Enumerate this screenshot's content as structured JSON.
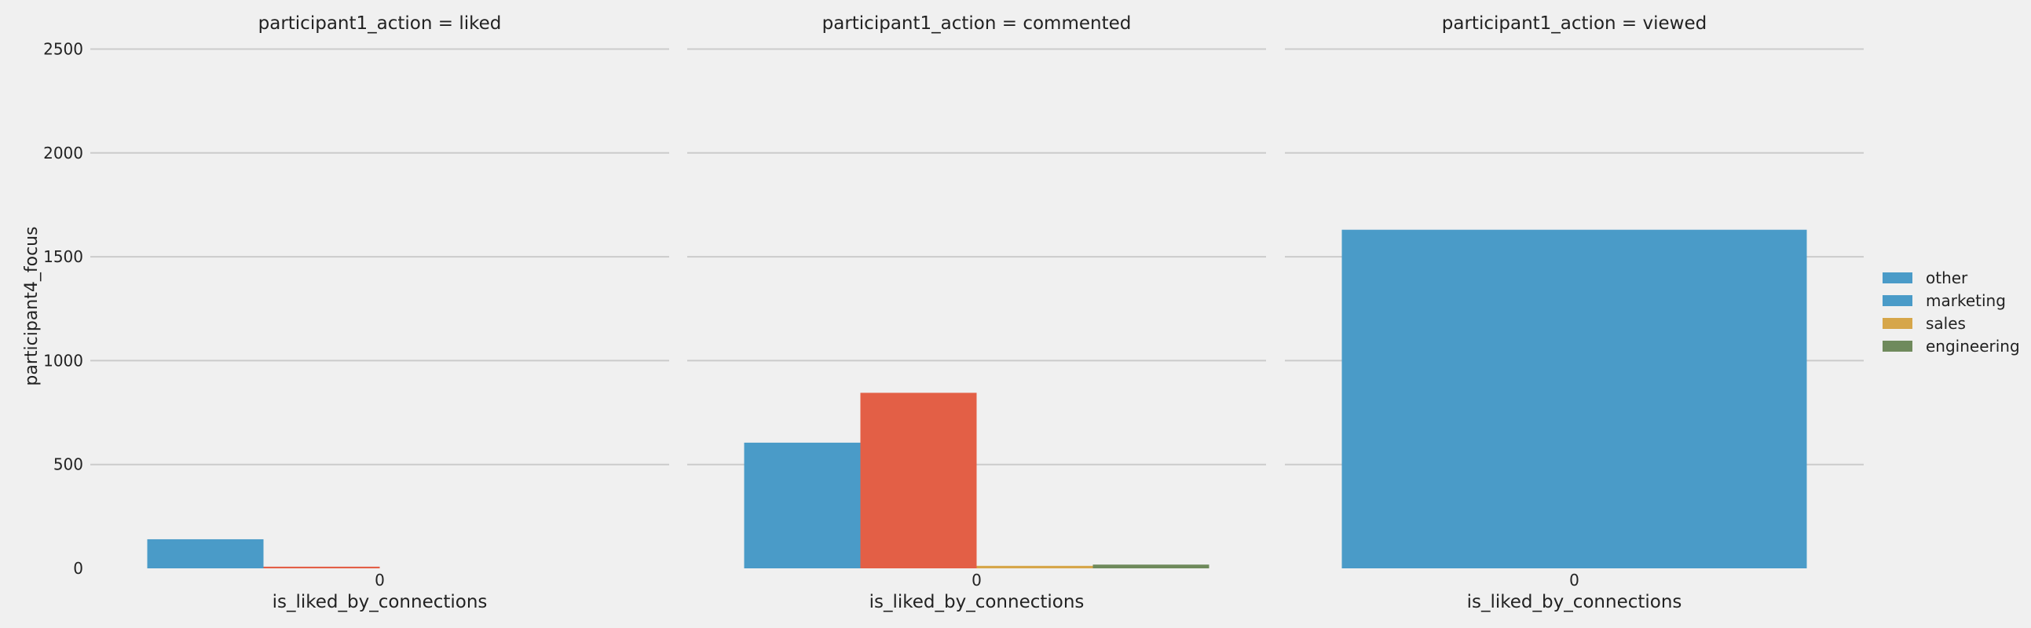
{
  "chart_data": {
    "type": "bar",
    "ylabel": "participant4_focus",
    "ylim": [
      0,
      2600
    ],
    "yticks": [
      0,
      500,
      1000,
      1500,
      2000,
      2500
    ],
    "grid": true,
    "legend_position": "right",
    "legend": [
      {
        "label": "other",
        "color": "#4a9bc8"
      },
      {
        "label": "marketing",
        "color": "#4a9bc8"
      },
      {
        "label": "sales",
        "color": "#d6a64a"
      },
      {
        "label": "engineering",
        "color": "#6f8a5c"
      }
    ],
    "panels": [
      {
        "title": "participant1_action = liked",
        "xlabel": "is_liked_by_connections",
        "categories": [
          "0"
        ],
        "bars": [
          {
            "value": 140,
            "color": "#4a9bc8"
          },
          {
            "value": 8,
            "color": "#e35f46"
          }
        ]
      },
      {
        "title": "participant1_action = commented",
        "xlabel": "is_liked_by_connections",
        "categories": [
          "0"
        ],
        "bars": [
          {
            "value": 605,
            "color": "#4a9bc8"
          },
          {
            "value": 845,
            "color": "#e35f46"
          },
          {
            "value": 12,
            "color": "#d6a64a"
          },
          {
            "value": 18,
            "color": "#6f8a5c"
          }
        ]
      },
      {
        "title": "participant1_action = viewed",
        "xlabel": "is_liked_by_connections",
        "categories": [
          "0"
        ],
        "bars": [
          {
            "value": 1630,
            "color": "#4a9bc8"
          }
        ]
      }
    ]
  }
}
